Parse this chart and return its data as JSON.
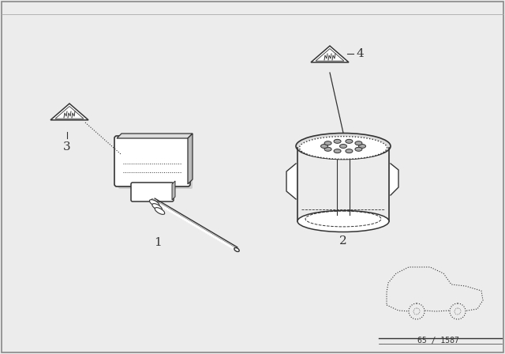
{
  "bg_color": "#ececec",
  "line_color": "#333333",
  "label1": "1",
  "label2": "2",
  "label3": "3",
  "label4": "4",
  "part_number": "65 / 1587",
  "fig_width": 6.4,
  "fig_height": 4.48
}
